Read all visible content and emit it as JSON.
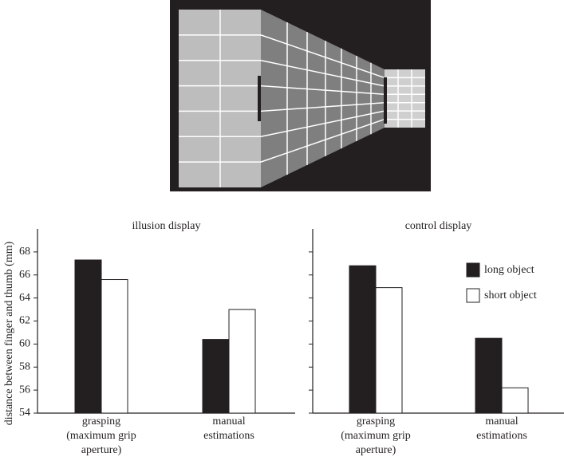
{
  "chart_data": [
    {
      "type": "bar",
      "title": "illusion display",
      "y_label": "distance between finger and thumb (mm)",
      "categories": [
        "grasping\n(maximum grip\naperture)",
        "manual\nestimations"
      ],
      "series": [
        {
          "color": "#231f20",
          "values": [
            67.3,
            60.4
          ]
        },
        {
          "color": "#ffffff",
          "values": [
            65.6,
            63.0
          ]
        }
      ],
      "ylim": [
        54,
        70
      ],
      "yticks": [
        54,
        56,
        58,
        60,
        62,
        64,
        66,
        68
      ]
    },
    {
      "type": "bar",
      "title": "control display",
      "categories": [
        "grasping\n(maximum grip\naperture)",
        "manual\nestimations"
      ],
      "series": [
        {
          "name": "long object",
          "color": "#231f20",
          "values": [
            66.8,
            60.5
          ]
        },
        {
          "name": "short object",
          "color": "#ffffff",
          "values": [
            64.9,
            56.2
          ]
        }
      ],
      "ylim": [
        54,
        70
      ],
      "yticks": [
        54,
        56,
        58,
        60,
        62,
        64,
        66,
        68
      ],
      "ytick_labels": false,
      "legend": "upper right"
    }
  ]
}
